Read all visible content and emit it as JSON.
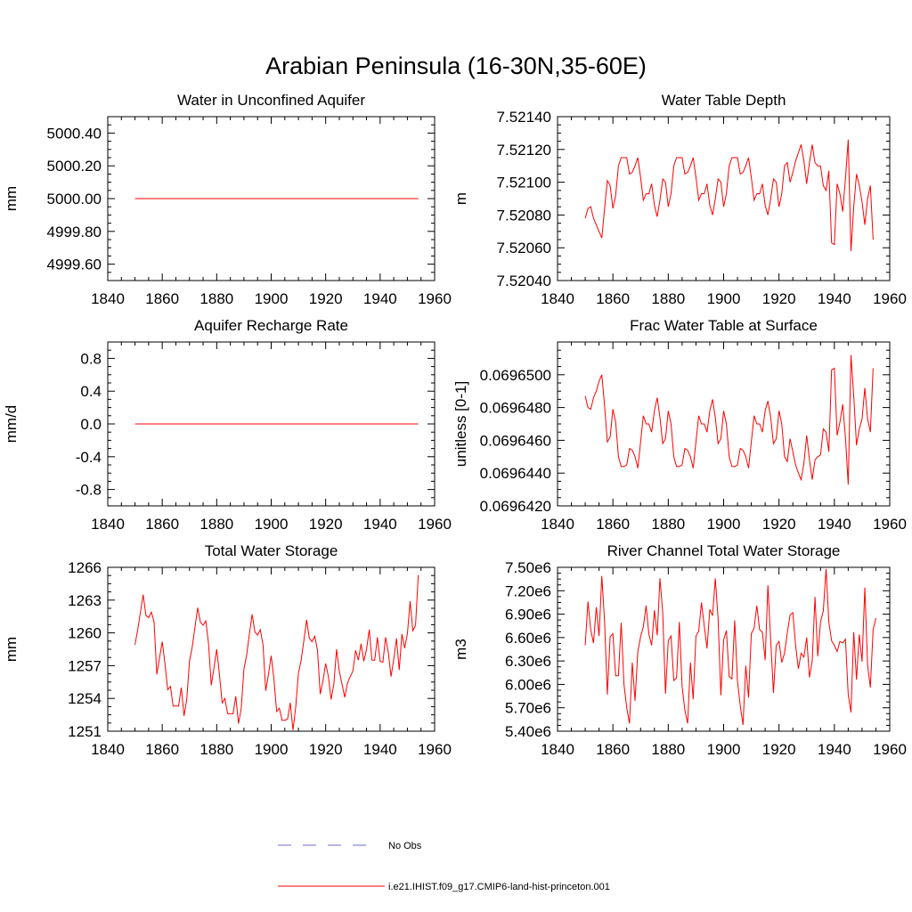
{
  "figure": {
    "title": "Arabian Peninsula (16-30N,35-60E)",
    "line_color": "#ff0000",
    "obs_color": "#6b6bd6"
  },
  "legend": {
    "obs_label": "No Obs",
    "model_label": "i.e21.IHIST.f09_g17.CMIP6-land-hist-princeton.001"
  },
  "chart_data": [
    {
      "type": "line",
      "title": "Water in Unconfined Aquifer",
      "ylabel": "mm",
      "xlim": [
        1840,
        1960
      ],
      "ylim": [
        4999.5,
        5000.5
      ],
      "xticks": [
        1840,
        1860,
        1880,
        1900,
        1920,
        1940,
        1960
      ],
      "yticks": [
        4999.6,
        4999.8,
        5000.0,
        5000.2,
        5000.4
      ],
      "ytick_labels": [
        "4999.60",
        "4999.80",
        "5000.00",
        "5000.20",
        "5000.40"
      ],
      "x_start": 1850,
      "series": [
        {
          "values": [
            5000.0,
            5000.0,
            5000.0,
            5000.0,
            5000.0,
            5000.0,
            5000.0,
            5000.0,
            5000.0,
            5000.0,
            5000.0,
            5000.0,
            5000.0,
            5000.0,
            5000.0,
            5000.0,
            5000.0,
            5000.0,
            5000.0,
            5000.0,
            5000.0,
            5000.0,
            5000.0,
            5000.0,
            5000.0,
            5000.0,
            5000.0,
            5000.0,
            5000.0,
            5000.0,
            5000.0,
            5000.0,
            5000.0,
            5000.0,
            5000.0,
            5000.0,
            5000.0,
            5000.0,
            5000.0,
            5000.0,
            5000.0,
            5000.0,
            5000.0,
            5000.0,
            5000.0,
            5000.0,
            5000.0,
            5000.0,
            5000.0,
            5000.0,
            5000.0,
            5000.0,
            5000.0,
            5000.0,
            5000.0,
            5000.0,
            5000.0,
            5000.0,
            5000.0,
            5000.0,
            5000.0,
            5000.0,
            5000.0,
            5000.0,
            5000.0,
            5000.0,
            5000.0,
            5000.0,
            5000.0,
            5000.0,
            5000.0,
            5000.0,
            5000.0,
            5000.0,
            5000.0,
            5000.0,
            5000.0,
            5000.0,
            5000.0,
            5000.0,
            5000.0,
            5000.0,
            5000.0,
            5000.0,
            5000.0,
            5000.0,
            5000.0,
            5000.0,
            5000.0,
            5000.0,
            5000.0,
            5000.0,
            5000.0,
            5000.0,
            5000.0,
            5000.0,
            5000.0,
            5000.0,
            5000.0,
            5000.0,
            5000.0,
            5000.0,
            5000.0,
            5000.0,
            5000.0
          ]
        }
      ]
    },
    {
      "type": "line",
      "title": "Water Table Depth",
      "ylabel": "m",
      "xlim": [
        1840,
        1960
      ],
      "ylim": [
        7.5204,
        7.5214
      ],
      "xticks": [
        1840,
        1860,
        1880,
        1900,
        1920,
        1940,
        1960
      ],
      "yticks": [
        7.5204,
        7.5206,
        7.5208,
        7.521,
        7.5212,
        7.5214
      ],
      "ytick_labels": [
        "7.52040",
        "7.52060",
        "7.52080",
        "7.52100",
        "7.52120",
        "7.52140"
      ],
      "x_start": 1850,
      "series": [
        {
          "values": [
            7.52078,
            7.52084,
            7.52085,
            7.52078,
            7.52074,
            7.5207,
            7.52066,
            7.52084,
            7.52101,
            7.52098,
            7.52084,
            7.52092,
            7.5211,
            7.52115,
            7.52115,
            7.52115,
            7.52105,
            7.52106,
            7.5211,
            7.52115,
            7.52103,
            7.52089,
            7.52093,
            7.52093,
            7.52099,
            7.52086,
            7.52079,
            7.52089,
            7.52102,
            7.521,
            7.52085,
            7.52093,
            7.5211,
            7.52115,
            7.52115,
            7.52115,
            7.52105,
            7.52106,
            7.5211,
            7.52115,
            7.52103,
            7.52089,
            7.52093,
            7.52093,
            7.52099,
            7.52086,
            7.5208,
            7.5209,
            7.52102,
            7.521,
            7.52085,
            7.52093,
            7.5211,
            7.52115,
            7.52115,
            7.52115,
            7.52105,
            7.52106,
            7.5211,
            7.52115,
            7.52103,
            7.52089,
            7.52093,
            7.52093,
            7.52099,
            7.52086,
            7.5208,
            7.5209,
            7.52102,
            7.521,
            7.52085,
            7.52093,
            7.5211,
            7.52112,
            7.521,
            7.52106,
            7.52113,
            7.52118,
            7.52123,
            7.52113,
            7.52099,
            7.52112,
            7.52123,
            7.52112,
            7.5211,
            7.5211,
            7.52098,
            7.52095,
            7.52107,
            7.52063,
            7.52062,
            7.52099,
            7.52093,
            7.52082,
            7.52102,
            7.52126,
            7.52058,
            7.52085,
            7.52105,
            7.52098,
            7.52088,
            7.52074,
            7.5209,
            7.52098,
            7.52065
          ]
        }
      ]
    },
    {
      "type": "line",
      "title": "Aquifer Recharge Rate",
      "ylabel": "mm/d",
      "xlim": [
        1840,
        1960
      ],
      "ylim": [
        -1.0,
        1.0
      ],
      "xticks": [
        1840,
        1860,
        1880,
        1900,
        1920,
        1940,
        1960
      ],
      "yticks": [
        -0.8,
        -0.4,
        0.0,
        0.4,
        0.8
      ],
      "ytick_labels": [
        "-0.8",
        "-0.4",
        "0.0",
        "0.4",
        "0.8"
      ],
      "x_start": 1850,
      "series": [
        {
          "values": [
            0.0,
            0.0,
            0.0,
            0.0,
            0.0,
            0.0,
            0.0,
            0.0,
            0.0,
            0.0,
            0.0,
            0.0,
            0.0,
            0.0,
            0.0,
            0.0,
            0.0,
            0.0,
            0.0,
            0.0,
            0.0,
            0.0,
            0.0,
            0.0,
            0.0,
            0.0,
            0.0,
            0.0,
            0.0,
            0.0,
            0.0,
            0.0,
            0.0,
            0.0,
            0.0,
            0.0,
            0.0,
            0.0,
            0.0,
            0.0,
            0.0,
            0.0,
            0.0,
            0.0,
            0.0,
            0.0,
            0.0,
            0.0,
            0.0,
            0.0,
            0.0,
            0.0,
            0.0,
            0.0,
            0.0,
            0.0,
            0.0,
            0.0,
            0.0,
            0.0,
            0.0,
            0.0,
            0.0,
            0.0,
            0.0,
            0.0,
            0.0,
            0.0,
            0.0,
            0.0,
            0.0,
            0.0,
            0.0,
            0.0,
            0.0,
            0.0,
            0.0,
            0.0,
            0.0,
            0.0,
            0.0,
            0.0,
            0.0,
            0.0,
            0.0,
            0.0,
            0.0,
            0.0,
            0.0,
            0.0,
            0.0,
            0.0,
            0.0,
            0.0,
            0.0,
            0.0,
            0.0,
            0.0,
            0.0,
            0.0,
            0.0,
            0.0,
            0.0,
            0.0,
            0.0
          ]
        }
      ]
    },
    {
      "type": "line",
      "title": "Frac Water Table at Surface",
      "ylabel": "unitless [0-1]",
      "xlim": [
        1840,
        1960
      ],
      "ylim": [
        0.069642,
        0.069652
      ],
      "xticks": [
        1840,
        1860,
        1880,
        1900,
        1920,
        1940,
        1960
      ],
      "yticks": [
        0.069642,
        0.069644,
        0.069646,
        0.069648,
        0.06965
      ],
      "ytick_labels": [
        "0.0696420",
        "0.0696440",
        "0.0696460",
        "0.0696480",
        "0.0696500"
      ],
      "x_start": 1850,
      "series": [
        {
          "values": [
            0.0696487,
            0.069648,
            0.0696479,
            0.0696486,
            0.069649,
            0.0696496,
            0.06965,
            0.0696481,
            0.0696459,
            0.0696462,
            0.0696479,
            0.0696471,
            0.069645,
            0.0696444,
            0.0696444,
            0.0696445,
            0.0696455,
            0.0696454,
            0.069645,
            0.0696443,
            0.0696459,
            0.0696475,
            0.069647,
            0.069647,
            0.0696465,
            0.0696478,
            0.0696486,
            0.0696474,
            0.0696458,
            0.0696461,
            0.0696478,
            0.069647,
            0.069645,
            0.0696444,
            0.0696444,
            0.0696445,
            0.0696455,
            0.0696454,
            0.069645,
            0.0696443,
            0.0696459,
            0.0696475,
            0.069647,
            0.069647,
            0.0696465,
            0.0696478,
            0.0696485,
            0.0696474,
            0.0696458,
            0.0696461,
            0.0696478,
            0.069647,
            0.069645,
            0.0696444,
            0.0696444,
            0.0696445,
            0.0696455,
            0.0696454,
            0.069645,
            0.0696443,
            0.0696459,
            0.0696475,
            0.069647,
            0.069647,
            0.0696465,
            0.0696478,
            0.0696484,
            0.0696474,
            0.0696458,
            0.0696461,
            0.0696478,
            0.069647,
            0.069645,
            0.0696447,
            0.0696461,
            0.0696453,
            0.0696445,
            0.069644,
            0.0696436,
            0.0696446,
            0.0696463,
            0.0696448,
            0.0696436,
            0.0696448,
            0.069645,
            0.0696451,
            0.0696467,
            0.0696465,
            0.0696453,
            0.0696503,
            0.0696504,
            0.0696463,
            0.0696471,
            0.0696482,
            0.0696462,
            0.0696433,
            0.0696512,
            0.0696487,
            0.0696457,
            0.0696467,
            0.0696473,
            0.0696492,
            0.0696473,
            0.0696465,
            0.0696504
          ]
        }
      ]
    },
    {
      "type": "line",
      "title": "Total Water Storage",
      "ylabel": "mm",
      "xlim": [
        1840,
        1960
      ],
      "ylim": [
        1251,
        1266
      ],
      "xticks": [
        1840,
        1860,
        1880,
        1900,
        1920,
        1940,
        1960
      ],
      "yticks": [
        1251,
        1254,
        1257,
        1260,
        1263,
        1266
      ],
      "ytick_labels": [
        "1251",
        "1254",
        "1257",
        "1260",
        "1263",
        "1266"
      ],
      "x_start": 1850,
      "series": [
        {
          "values": [
            1258.9,
            1260.3,
            1261.9,
            1263.5,
            1261.6,
            1261.4,
            1261.9,
            1261.0,
            1256.2,
            1257.7,
            1259.2,
            1257.2,
            1254.8,
            1255.1,
            1253.3,
            1253.3,
            1253.3,
            1255.0,
            1252.4,
            1253.9,
            1257.4,
            1258.7,
            1260.5,
            1262.3,
            1261.0,
            1260.7,
            1261.1,
            1259.0,
            1255.2,
            1256.8,
            1258.5,
            1256.2,
            1253.6,
            1254.0,
            1252.6,
            1252.6,
            1252.6,
            1254.2,
            1251.7,
            1253.1,
            1256.7,
            1258.0,
            1259.9,
            1261.7,
            1260.1,
            1259.8,
            1260.3,
            1258.9,
            1254.7,
            1256.2,
            1257.9,
            1255.8,
            1252.8,
            1253.1,
            1252.0,
            1252.0,
            1252.1,
            1253.6,
            1251.1,
            1253.2,
            1256.3,
            1257.5,
            1259.3,
            1261.2,
            1259.5,
            1259.2,
            1259.7,
            1258.4,
            1254.4,
            1255.6,
            1257.2,
            1256.0,
            1253.9,
            1255.3,
            1258.5,
            1256.5,
            1255.3,
            1254.1,
            1255.4,
            1256.0,
            1256.5,
            1258.4,
            1257.5,
            1259.0,
            1257.4,
            1258.5,
            1260.3,
            1257.5,
            1257.5,
            1259.6,
            1257.4,
            1257.3,
            1259.6,
            1258.2,
            1256.0,
            1257.6,
            1259.5,
            1256.6,
            1259.9,
            1258.6,
            1259.9,
            1262.9,
            1260.2,
            1260.7,
            1265.3
          ]
        }
      ]
    },
    {
      "type": "line",
      "title": "River Channel Total Water Storage",
      "ylabel": "m3",
      "xlim": [
        1840,
        1960
      ],
      "ylim": [
        5400000,
        7500000
      ],
      "xticks": [
        1840,
        1860,
        1880,
        1900,
        1920,
        1940,
        1960
      ],
      "yticks": [
        5400000,
        5700000,
        6000000,
        6300000,
        6600000,
        6900000,
        7200000,
        7500000
      ],
      "ytick_labels": [
        "5.40e6",
        "5.70e6",
        "6.00e6",
        "6.30e6",
        "6.60e6",
        "6.90e6",
        "7.20e6",
        "7.50e6"
      ],
      "x_start": 1850,
      "series": [
        {
          "values": [
            6500000,
            7060000,
            6700000,
            6530000,
            6990000,
            6620000,
            7390000,
            6800000,
            5870000,
            6610000,
            6650000,
            6110000,
            6110000,
            6790000,
            6000000,
            5700000,
            5500000,
            6280000,
            5790000,
            6420000,
            6610000,
            6740000,
            7010000,
            6640000,
            6500000,
            6950000,
            6630000,
            7360000,
            6920000,
            5880000,
            6560000,
            6620000,
            6050000,
            6080000,
            6800000,
            5970000,
            5670000,
            5500000,
            6280000,
            5810000,
            6620000,
            6680000,
            7050000,
            6750000,
            6460000,
            6960000,
            6880000,
            7360000,
            6840000,
            5860000,
            6570000,
            6690000,
            6100000,
            6070000,
            6820000,
            6040000,
            5730000,
            5480000,
            6240000,
            5830000,
            6650000,
            6720000,
            7010000,
            6700000,
            6670000,
            6310000,
            7270000,
            6570000,
            5890000,
            6500000,
            6550000,
            6280000,
            6400000,
            6660000,
            6890000,
            6920000,
            6500000,
            6200000,
            6400000,
            6350000,
            6600000,
            6090000,
            6300000,
            7120000,
            6360000,
            6800000,
            6940000,
            7480000,
            6800000,
            6560000,
            6500000,
            6420000,
            6550000,
            6530000,
            6580000,
            5870000,
            5640000,
            6670000,
            6060000,
            6640000,
            6290000,
            7240000,
            6250000,
            5960000,
            6700000,
            6850000
          ]
        }
      ]
    }
  ]
}
